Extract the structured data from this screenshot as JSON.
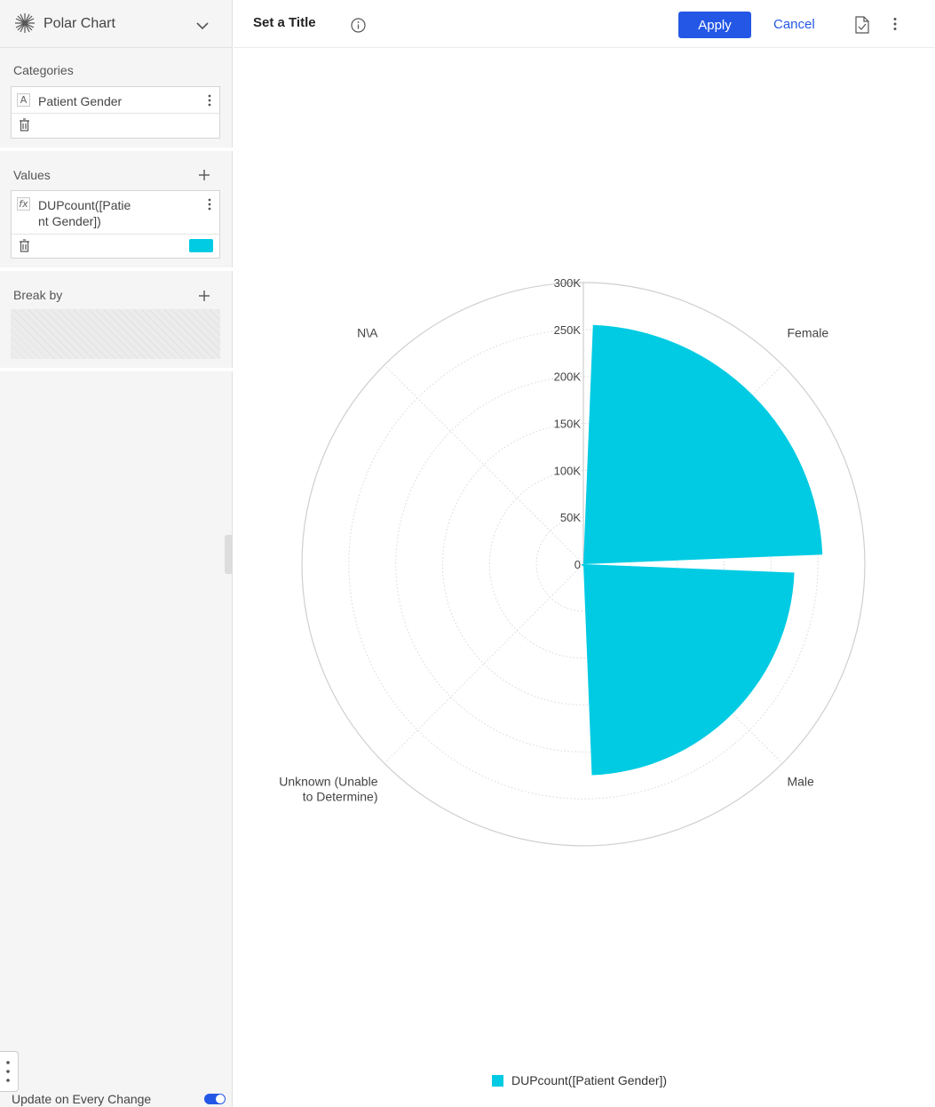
{
  "sidebar": {
    "chart_type": {
      "label": "Polar Chart",
      "icon": "polar-chart-icon"
    },
    "categories": {
      "title": "Categories",
      "field": {
        "type_tag": "A",
        "label": "Patient Gender"
      }
    },
    "values": {
      "title": "Values",
      "field": {
        "type_tag": "fx",
        "line1": "DUPcount([Patie",
        "line2": "nt Gender])",
        "color": "#00cbe3"
      }
    },
    "break_by": {
      "title": "Break by"
    },
    "update_toggle": {
      "label": "Update on Every Change",
      "on": true
    }
  },
  "header": {
    "title": "Set a Title",
    "apply_label": "Apply",
    "cancel_label": "Cancel"
  },
  "chart_data": {
    "type": "polar",
    "categories": [
      "Female",
      "Male",
      "Unknown (Unable to Determine)",
      "N\\A"
    ],
    "category_label_lines": [
      [
        "Female"
      ],
      [
        "Male"
      ],
      [
        "Unknown (Unable",
        "to Determine)"
      ],
      [
        "N\\A"
      ]
    ],
    "series": [
      {
        "name": "DUPcount([Patient Gender])",
        "values": [
          255000,
          225000,
          2000,
          0
        ],
        "color": "#00cbe3"
      }
    ],
    "radial_ticks": [
      "0",
      "50K",
      "100K",
      "150K",
      "200K",
      "250K",
      "300K"
    ],
    "radial_max": 300000,
    "legend_placement": "bottom",
    "grid": true
  }
}
